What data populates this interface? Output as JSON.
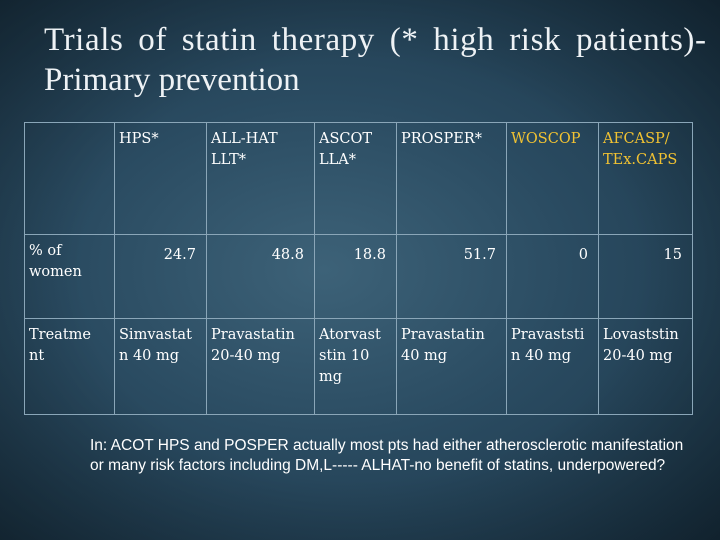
{
  "slide": {
    "title_line1": "Trials of statin therapy (* high risk patients)-",
    "title_line2": "Primary prevention"
  },
  "table": {
    "headers": [
      "",
      "HPS*",
      "ALL-HAT LLT*",
      "ASCOT LLA*",
      "PROSPER*",
      "WOSCOP",
      "AFCASP/ TEx.CAPS"
    ],
    "highlight_headers": [
      "WOSCOP",
      "AFCASP/ TEx.CAPS"
    ],
    "rows": [
      {
        "label": "% of women",
        "cells": [
          "24.7",
          "48.8",
          "18.8",
          "51.7",
          "0",
          "15"
        ]
      },
      {
        "label": "Treatme nt",
        "cells": [
          "Simvastat n 40 mg",
          "Pravastatin 20-40 mg",
          "Atorvast stin 10 mg",
          "Pravastatin 40 mg",
          "Pravaststi n 40 mg",
          "Lovaststin 20-40 mg"
        ]
      }
    ]
  },
  "note": "In: ACOT HPS and POSPER actually most pts had either atherosclerotic manifestation or many risk factors including DM,L----- ALHAT-no benefit of statins, underpowered?",
  "colors": {
    "background": "#2a4b61",
    "text": "#ffffff",
    "highlight": "#f1c232",
    "border": "#8aa6b8"
  }
}
